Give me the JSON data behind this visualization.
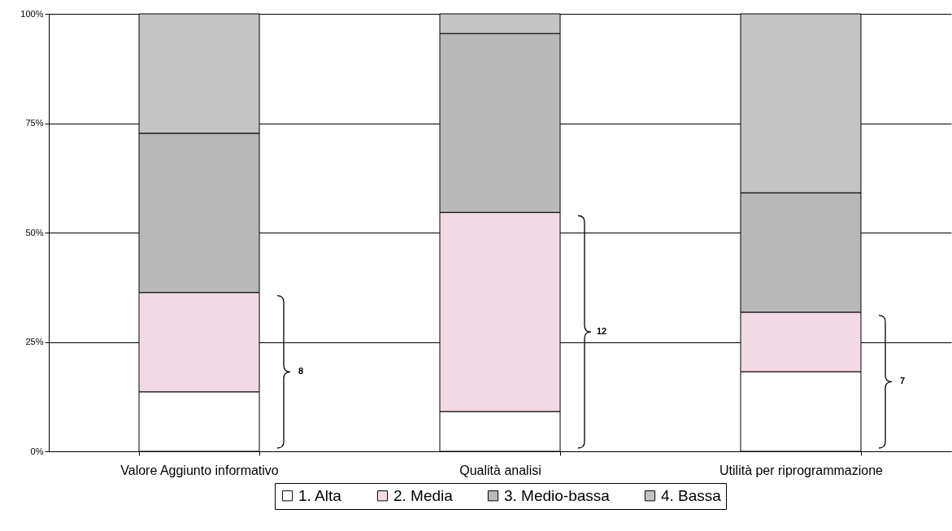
{
  "chart_data": {
    "type": "bar",
    "stacked": true,
    "categories": [
      "Valore Aggiunto informativo",
      "Qualità analisi",
      "Utilità per riprogrammazione"
    ],
    "series": [
      {
        "name": "1. Alta",
        "color": "#ffffff",
        "values": [
          13.6,
          9.1,
          18.2
        ]
      },
      {
        "name": "2. Media",
        "color": "#f3d9e6",
        "values": [
          22.7,
          45.5,
          13.6
        ]
      },
      {
        "name": "3. Medio-bassa",
        "color": "#b8b8b8",
        "values": [
          36.4,
          40.9,
          27.3
        ]
      },
      {
        "name": "4. Bassa",
        "color": "#c4c4c4",
        "values": [
          27.3,
          4.5,
          40.9
        ]
      }
    ],
    "ylim": [
      0,
      100
    ],
    "yticks": [
      {
        "value": 0,
        "label": "0%"
      },
      {
        "value": 25,
        "label": "25%"
      },
      {
        "value": 50,
        "label": "50%"
      },
      {
        "value": 75,
        "label": "75%"
      },
      {
        "value": 100,
        "label": "100%"
      }
    ],
    "grid": "y",
    "legend": "bottom",
    "annotations": [
      "8",
      "12",
      "7"
    ]
  }
}
